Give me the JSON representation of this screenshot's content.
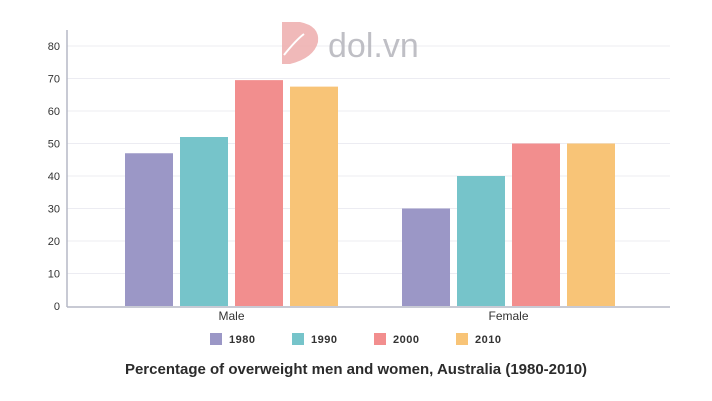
{
  "watermark": "dol.vn",
  "chart_data": {
    "type": "bar",
    "title": "Percentage of overweight men and women, Australia (1980-2010)",
    "categories": [
      "Male",
      "Female"
    ],
    "series": [
      {
        "name": "1980",
        "values": [
          47,
          30
        ],
        "color": "#9b97c6"
      },
      {
        "name": "1990",
        "values": [
          52,
          40
        ],
        "color": "#76c4ca"
      },
      {
        "name": "2000",
        "values": [
          69.5,
          50
        ],
        "color": "#f28e8e"
      },
      {
        "name": "2010",
        "values": [
          67.5,
          50
        ],
        "color": "#f8c477"
      }
    ],
    "yticks": [
      "0",
      "10",
      "20",
      "30",
      "40",
      "50",
      "60",
      "70",
      "80"
    ],
    "ylim": [
      0,
      80
    ],
    "xlabel": "",
    "ylabel": "",
    "grid": true,
    "legend_position": "bottom"
  }
}
